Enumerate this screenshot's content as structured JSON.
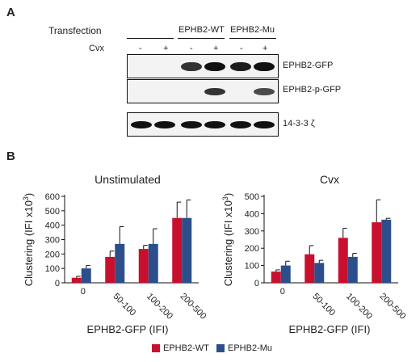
{
  "panel_a": {
    "letter": "A",
    "transfection_label": "Transfection",
    "groups": [
      "EPHB2-WT",
      "EPHB2-Mu"
    ],
    "cvx_label": "Cvx",
    "lane_signs": [
      "-",
      "+",
      "-",
      "+",
      "-",
      "+"
    ],
    "blot_labels": [
      "EPHB2-GFP",
      "EPHB2-p-GFP",
      "14-3-3 ζ"
    ],
    "band_intensity": {
      "ephb2_gfp": [
        0,
        0,
        0.85,
        1.0,
        0.95,
        1.0
      ],
      "ephb2_p_gfp": [
        0,
        0,
        0,
        0.85,
        0,
        0.75
      ],
      "loading": [
        1,
        1,
        1,
        1,
        1,
        1
      ]
    }
  },
  "panel_b": {
    "letter": "B",
    "legend": [
      {
        "label": "EPHB2-WT",
        "color": "#c8102e"
      },
      {
        "label": "EPHB2-Mu",
        "color": "#2c4f8c"
      }
    ]
  },
  "chart_data": [
    {
      "type": "bar",
      "title": "Unstimulated",
      "xlabel": "EPHB2-GFP (IFI)",
      "ylabel": "Clustering (IFI x10",
      "ylabel_sup": "3",
      "ylabel_end": ")",
      "categories": [
        "0",
        "50-100",
        "100-200",
        "200-500"
      ],
      "ylim": [
        0,
        600
      ],
      "yticks": [
        0,
        100,
        200,
        300,
        400,
        500,
        600
      ],
      "series": [
        {
          "name": "EPHB2-WT",
          "color": "#c8102e",
          "values": [
            35,
            180,
            235,
            450
          ],
          "errors": [
            10,
            40,
            25,
            110
          ]
        },
        {
          "name": "EPHB2-Mu",
          "color": "#2c4f8c",
          "values": [
            100,
            270,
            270,
            450
          ],
          "errors": [
            20,
            120,
            105,
            125
          ]
        }
      ]
    },
    {
      "type": "bar",
      "title": "Cvx",
      "xlabel": "EPHB2-GFP (IFI)",
      "ylabel": "Clustering (IFI x10",
      "ylabel_sup": "3",
      "ylabel_end": ")",
      "categories": [
        "0",
        "50-100",
        "100-200",
        "200-500"
      ],
      "ylim": [
        0,
        500
      ],
      "yticks": [
        0,
        100,
        200,
        300,
        400,
        500
      ],
      "series": [
        {
          "name": "EPHB2-WT",
          "color": "#c8102e",
          "values": [
            65,
            165,
            260,
            350
          ],
          "errors": [
            10,
            50,
            55,
            130
          ]
        },
        {
          "name": "EPHB2-Mu",
          "color": "#2c4f8c",
          "values": [
            100,
            115,
            150,
            365
          ],
          "errors": [
            25,
            15,
            20,
            8
          ]
        }
      ]
    }
  ]
}
